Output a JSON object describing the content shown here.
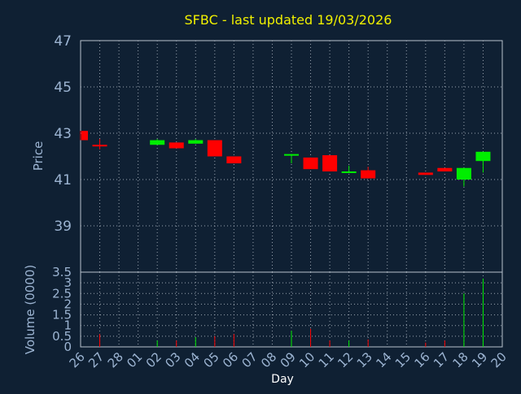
{
  "chart_data": {
    "type": "candlestick",
    "title": "SFBC - last updated 19/03/2026",
    "xlabel": "Day",
    "colors": {
      "background": "#0f2033",
      "plot": "#0f2033",
      "up": "#00ee00",
      "down": "#ff0000",
      "grid": "#9aa4b0",
      "text": "#9cb4d2",
      "title": "#f0f000"
    },
    "price_panel": {
      "ylabel": "Price",
      "ylim": [
        37,
        47
      ],
      "yticks": [
        "47",
        "45",
        "43",
        "41",
        "39"
      ],
      "grid": true
    },
    "volume_panel": {
      "ylabel": "Volume (0000)",
      "ylim": [
        0,
        3.5
      ],
      "yticks": [
        "3.5",
        "3",
        "2.5",
        "2",
        "1.5",
        "1",
        "0.5",
        "0"
      ],
      "grid": true
    },
    "categories": [
      "26",
      "27",
      "28",
      "01",
      "02",
      "03",
      "04",
      "05",
      "06",
      "07",
      "08",
      "09",
      "10",
      "11",
      "12",
      "13",
      "14",
      "15",
      "16",
      "17",
      "18",
      "19",
      "20"
    ],
    "candles": [
      {
        "day": "26",
        "open": 43.1,
        "close": 42.7,
        "high": 43.1,
        "low": 42.7,
        "volume": 0.0
      },
      {
        "day": "27",
        "open": 42.5,
        "close": 42.45,
        "high": 42.75,
        "low": 42.3,
        "volume": 0.6
      },
      {
        "day": "02",
        "open": 42.5,
        "close": 42.7,
        "high": 42.75,
        "low": 42.5,
        "volume": 0.3
      },
      {
        "day": "03",
        "open": 42.6,
        "close": 42.35,
        "high": 42.6,
        "low": 42.35,
        "volume": 0.3
      },
      {
        "day": "04",
        "open": 42.55,
        "close": 42.7,
        "high": 42.75,
        "low": 42.55,
        "volume": 0.45
      },
      {
        "day": "05",
        "open": 42.7,
        "close": 42.0,
        "high": 42.7,
        "low": 42.0,
        "volume": 0.5
      },
      {
        "day": "06",
        "open": 42.0,
        "close": 41.7,
        "high": 42.0,
        "low": 41.7,
        "volume": 0.6
      },
      {
        "day": "09",
        "open": 42.05,
        "close": 42.1,
        "high": 42.1,
        "low": 41.7,
        "volume": 0.75
      },
      {
        "day": "10",
        "open": 41.95,
        "close": 41.45,
        "high": 41.95,
        "low": 41.45,
        "volume": 0.85
      },
      {
        "day": "11",
        "open": 42.05,
        "close": 41.35,
        "high": 42.05,
        "low": 41.35,
        "volume": 0.3
      },
      {
        "day": "12",
        "open": 41.3,
        "close": 41.35,
        "high": 41.6,
        "low": 41.3,
        "volume": 0.3
      },
      {
        "day": "13",
        "open": 41.4,
        "close": 41.05,
        "high": 41.55,
        "low": 41.05,
        "volume": 0.35
      },
      {
        "day": "16",
        "open": 41.3,
        "close": 41.2,
        "high": 41.3,
        "low": 41.2,
        "volume": 0.2
      },
      {
        "day": "17",
        "open": 41.5,
        "close": 41.35,
        "high": 41.5,
        "low": 41.35,
        "volume": 0.3
      },
      {
        "day": "18",
        "open": 41.0,
        "close": 41.5,
        "high": 41.5,
        "low": 40.7,
        "volume": 2.5
      },
      {
        "day": "19",
        "open": 41.8,
        "close": 42.2,
        "high": 42.2,
        "low": 41.3,
        "volume": 3.2
      }
    ]
  }
}
